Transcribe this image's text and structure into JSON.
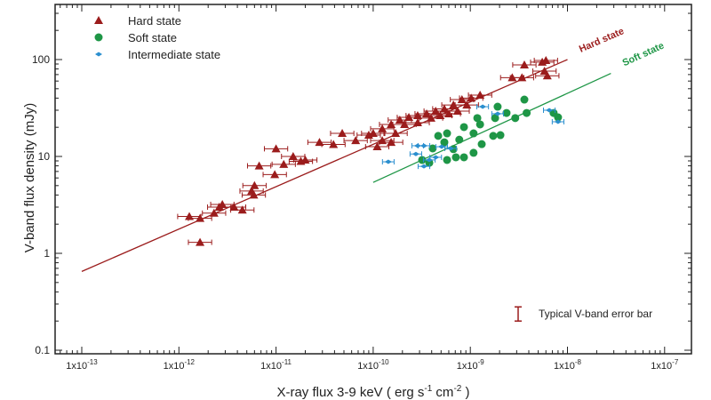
{
  "chart_data": {
    "type": "scatter",
    "title": "",
    "xlabel": "X-ray flux 3-9 keV ( erg s",
    "xlabel_parts": [
      "X-ray flux 3-9 keV ( erg s",
      "-1",
      " cm",
      "-2",
      " )"
    ],
    "ylabel": "V-band flux density (mJy)",
    "xscale": "log",
    "yscale": "log",
    "xlim": [
      5e-14,
      1.6e-07
    ],
    "ylim": [
      0.1,
      300
    ],
    "grid": false,
    "legend_placement": "top-left",
    "x_ticks": [
      1e-13,
      1e-12,
      1e-11,
      1e-10,
      1e-09,
      1e-08,
      1e-07
    ],
    "x_tick_labels": [
      [
        "1x10",
        "-13"
      ],
      [
        "1x10",
        "-12"
      ],
      [
        "1x10",
        "-11"
      ],
      [
        "1x10",
        "-10"
      ],
      [
        "1x10",
        "-9"
      ],
      [
        "1x10",
        "-8"
      ],
      [
        "1x10",
        "-7"
      ]
    ],
    "y_ticks": [
      0.1,
      1,
      10,
      100
    ],
    "y_tick_labels": [
      "0.1",
      "1",
      "10",
      "100"
    ],
    "series": [
      {
        "name": "Hard state",
        "marker": "triangle",
        "color": "#9b1c1c",
        "x_error_dex": 0.12,
        "points": [
          [
            1.65e-12,
            1.3
          ],
          [
            1.28e-12,
            2.4
          ],
          [
            1.65e-12,
            2.3
          ],
          [
            2.3e-12,
            2.6
          ],
          [
            2.6e-12,
            3.0
          ],
          [
            3.7e-12,
            3.0
          ],
          [
            4.5e-12,
            2.8
          ],
          [
            2.8e-12,
            3.2
          ],
          [
            6e-12,
            5.0
          ],
          [
            5.6e-12,
            4.4
          ],
          [
            5.9e-12,
            4.0
          ],
          [
            6.7e-12,
            8.0
          ],
          [
            9.7e-12,
            6.5
          ],
          [
            1e-11,
            12
          ],
          [
            1.5e-11,
            10
          ],
          [
            1.2e-11,
            8.3
          ],
          [
            1.8e-11,
            8.9
          ],
          [
            2e-11,
            9.2
          ],
          [
            4.8e-11,
            17.3
          ],
          [
            6.6e-11,
            14.6
          ],
          [
            9e-11,
            16.6
          ],
          [
            2.8e-11,
            14
          ],
          [
            3.9e-11,
            13.3
          ],
          [
            1e-10,
            17.3
          ],
          [
            1.24e-10,
            19.3
          ],
          [
            1.53e-10,
            21.4
          ],
          [
            1.88e-10,
            23.8
          ],
          [
            2.33e-10,
            25.3
          ],
          [
            2.87e-10,
            26.4
          ],
          [
            3.55e-10,
            27.6
          ],
          [
            4.4e-10,
            29.4
          ],
          [
            5.4e-10,
            31
          ],
          [
            6.7e-10,
            34
          ],
          [
            8.2e-10,
            38.6
          ],
          [
            1.24e-10,
            14.6
          ],
          [
            1.7e-10,
            17.3
          ],
          [
            2.1e-10,
            21.4
          ],
          [
            2.87e-10,
            22.3
          ],
          [
            3.94e-10,
            24.9
          ],
          [
            4.9e-10,
            26.4
          ],
          [
            6e-10,
            27.6
          ],
          [
            7.4e-10,
            29.4
          ],
          [
            9.2e-10,
            34
          ],
          [
            1.02e-09,
            40
          ],
          [
            1.53e-10,
            14.0
          ],
          [
            1.1e-10,
            12.6
          ],
          [
            1.26e-09,
            43
          ],
          [
            2.7e-09,
            65
          ],
          [
            3.4e-09,
            65
          ],
          [
            3.6e-09,
            88
          ],
          [
            5.5e-09,
            94
          ],
          [
            5.8e-09,
            76
          ],
          [
            6.2e-09,
            68
          ],
          [
            6e-09,
            98
          ]
        ]
      },
      {
        "name": "Soft state",
        "marker": "circle",
        "color": "#1e9646",
        "points": [
          [
            3.6e-09,
            38.6
          ],
          [
            3.8e-09,
            28.1
          ],
          [
            2.9e-09,
            24.9
          ],
          [
            2.36e-09,
            28.1
          ],
          [
            1.91e-09,
            32.6
          ],
          [
            1.8e-09,
            24.9
          ],
          [
            1.18e-09,
            24.9
          ],
          [
            1.26e-09,
            21.4
          ],
          [
            8.6e-10,
            20.1
          ],
          [
            1.08e-09,
            17.3
          ],
          [
            7.7e-10,
            14.9
          ],
          [
            5.76e-10,
            17.3
          ],
          [
            5.4e-10,
            14.0
          ],
          [
            4.1e-10,
            12.1
          ],
          [
            3.78e-10,
            8.6
          ],
          [
            5.76e-10,
            9.2
          ],
          [
            7.1e-10,
            9.8
          ],
          [
            8.6e-10,
            9.8
          ],
          [
            1.08e-09,
            10.9
          ],
          [
            1.31e-09,
            13.4
          ],
          [
            1.72e-09,
            16.3
          ],
          [
            2.04e-09,
            16.6
          ],
          [
            7.2e-09,
            28.1
          ],
          [
            8e-09,
            25.3
          ],
          [
            4.67e-10,
            16.3
          ],
          [
            6.7e-10,
            11.9
          ],
          [
            3.19e-10,
            9.2
          ]
        ]
      },
      {
        "name": "Intermediate state",
        "marker": "diamond",
        "color": "#2b8fcf",
        "x_error_dex": 0.06,
        "points": [
          [
            1.43e-10,
            8.8
          ],
          [
            2.87e-10,
            12.9
          ],
          [
            3.33e-10,
            12.9
          ],
          [
            2.75e-10,
            10.6
          ],
          [
            3.33e-10,
            7.9
          ],
          [
            5.07e-10,
            12.6
          ],
          [
            6.27e-10,
            12.1
          ],
          [
            1.34e-09,
            32.6
          ],
          [
            1.91e-09,
            27.6
          ],
          [
            6.5e-09,
            30
          ],
          [
            8e-09,
            22.8
          ],
          [
            4.4e-10,
            9.8
          ],
          [
            3.78e-10,
            9.2
          ]
        ]
      }
    ],
    "fit_lines": [
      {
        "label": "Hard state",
        "color": "#9b1c1c",
        "from": [
          1e-13,
          0.65
        ],
        "to": [
          1e-08,
          100
        ]
      },
      {
        "label": "Soft state",
        "color": "#1e9646",
        "from": [
          1e-10,
          5.4
        ],
        "to": [
          2.8e-08,
          72
        ]
      }
    ],
    "annotation": {
      "text": "Typical V-band error bar",
      "x": 3.3e-09,
      "y_low": 0.2,
      "y_high": 0.28,
      "color": "#9b1c1c"
    }
  }
}
